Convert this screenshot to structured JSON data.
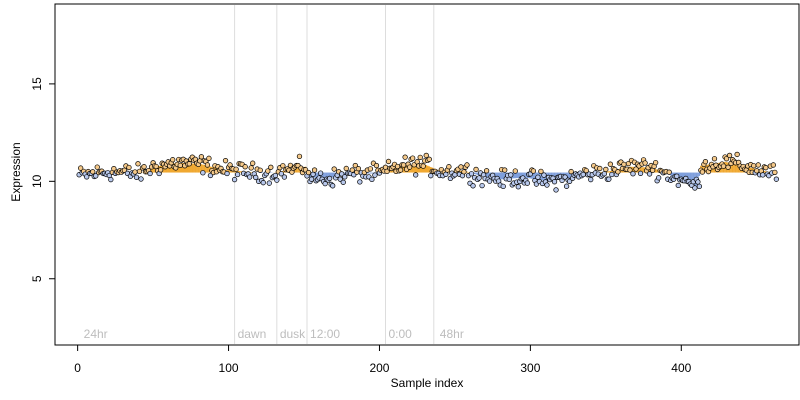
{
  "chart_data": {
    "type": "scatter",
    "title": "",
    "xlabel": "Sample index",
    "ylabel": "Expression",
    "xlim": [
      -15,
      478
    ],
    "ylim": [
      1.6,
      19.1
    ],
    "xticks": [
      0,
      100,
      200,
      300,
      400
    ],
    "yticks": [
      5,
      10,
      15
    ],
    "grid": false,
    "baseline": 10.45,
    "colors": {
      "above": "#f0a830",
      "below": "#7f9fdc",
      "point_stroke": "#000000",
      "annotation": "#bdbdbd",
      "vline": "#dddddd"
    },
    "annotations": [
      {
        "x": 2,
        "label": "24hr"
      },
      {
        "x": 104,
        "label": "dawn"
      },
      {
        "x": 132,
        "label": "dusk"
      },
      {
        "x": 152,
        "label": "12:00"
      },
      {
        "x": 204,
        "label": "0:00"
      },
      {
        "x": 238,
        "label": "48hr"
      }
    ],
    "vlines": [
      104,
      132,
      152,
      204,
      236
    ],
    "segments": [
      [
        0,
        10.3
      ],
      [
        20,
        10.5
      ],
      [
        40,
        10.4
      ],
      [
        50,
        10.75
      ],
      [
        65,
        10.95
      ],
      [
        80,
        10.9
      ],
      [
        95,
        10.6
      ],
      [
        110,
        10.5
      ],
      [
        125,
        10.4
      ],
      [
        140,
        10.6
      ],
      [
        150,
        10.75
      ],
      [
        152,
        10.2
      ],
      [
        165,
        10.15
      ],
      [
        180,
        10.4
      ],
      [
        200,
        10.4
      ],
      [
        206,
        10.6
      ],
      [
        215,
        10.8
      ],
      [
        228,
        10.9
      ],
      [
        240,
        10.5
      ],
      [
        255,
        10.55
      ],
      [
        265,
        10.3
      ],
      [
        280,
        10.1
      ],
      [
        295,
        10.2
      ],
      [
        310,
        10.0
      ],
      [
        325,
        10.15
      ],
      [
        335,
        10.4
      ],
      [
        350,
        10.5
      ],
      [
        365,
        10.75
      ],
      [
        380,
        10.7
      ],
      [
        392,
        10.3
      ],
      [
        400,
        10.0
      ],
      [
        410,
        9.75
      ],
      [
        412,
        10.8
      ],
      [
        428,
        11.0
      ],
      [
        440,
        10.8
      ],
      [
        450,
        10.6
      ],
      [
        462,
        10.4
      ]
    ],
    "n_points": 463,
    "noise_amplitude": 0.55
  }
}
